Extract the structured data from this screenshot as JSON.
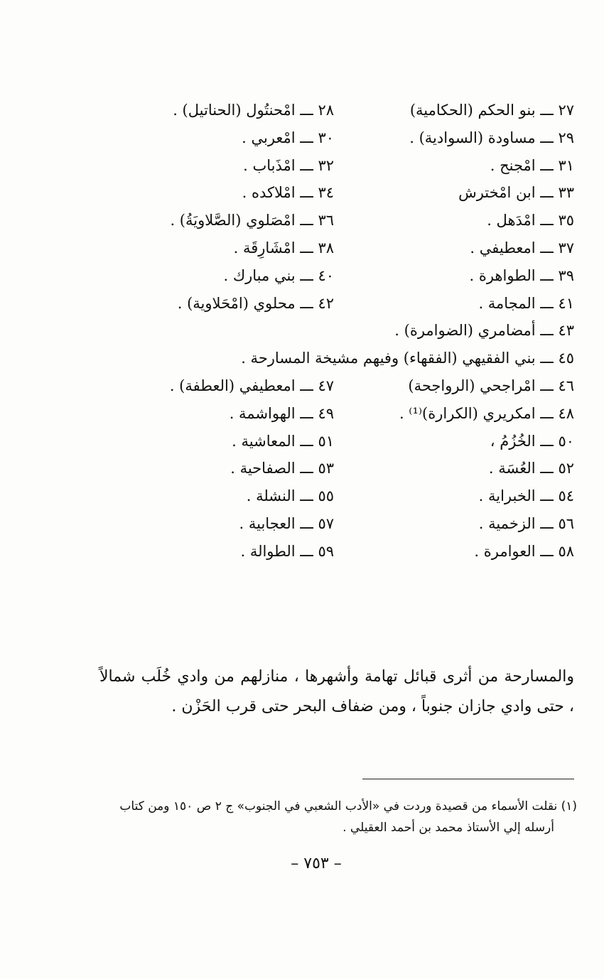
{
  "list_rows": [
    {
      "right": "٢٧ ـــ بنو الحكم (الحكامية)",
      "left": "٢٨ ـــ امْحنتُول (الحناتيل) ."
    },
    {
      "right": "٢٩ ـــ مساودة (السوادية) .",
      "left": "٣٠ ـــ امْعربي ."
    },
    {
      "right": "٣١ ـــ امْجنح .",
      "left": "٣٢ ـــ امْذَباب ."
    },
    {
      "right": "٣٣ ـــ ابن امْخترش",
      "left": "٣٤ ـــ امْلاكده ."
    },
    {
      "right": "٣٥ ـــ امْدَهل .",
      "left": "٣٦ ـــ امْصَلوي (الصَّلاويَةُ) ."
    },
    {
      "right": "٣٧ ـــ امعطيفي .",
      "left": "٣٨ ـــ امْشَارِقَة ."
    },
    {
      "right": "٣٩ ـــ الطواهرة .",
      "left": "٤٠ ـــ بني مبارك ."
    },
    {
      "right": "٤١ ـــ المجامة .",
      "left": "٤٢ ـــ محلوي (امْحَلاوية) ."
    },
    {
      "right": "٤٣ ـــ أمضامري (الضوامرة) .",
      "left": ""
    },
    {
      "right": "٤٥ ـــ بني الفقيهي (الفقهاء) وفيهم مشيخة المسارحة .",
      "left": ""
    },
    {
      "right": "٤٦ ـــ امْراجحي (الرواجحة)",
      "left": "٤٧ ـــ امعطيفي (العطفة) ."
    },
    {
      "right": "٤٨ ـــ امكريري (الكرارة)⁽¹⁾ .",
      "left": "٤٩ ـــ الهواشمة ."
    },
    {
      "right": "٥٠ ـــ الخُزُمُ ،",
      "left": "٥١ ـــ المعاشية ."
    },
    {
      "right": "٥٢ ـــ العُسَة .",
      "left": "٥٣ ـــ الصفاحية ."
    },
    {
      "right": "٥٤ ـــ الخبراية .",
      "left": "٥٥ ـــ النشلة ."
    },
    {
      "right": "٥٦ ـــ الزخمية .",
      "left": "٥٧ ـــ العجابية ."
    },
    {
      "right": "٥٨ ـــ العوامرة .",
      "left": "٥٩ ـــ الطوالة ."
    }
  ],
  "paragraph": "والمسارحة من أثرى قبائل تهامة وأشهرها ، منازلهم من وادي خُلَب شمالاً ، حتى وادي جازان جنوباً ، ومن ضفاف البحر حتى قرب الحَزْن .",
  "footnote": {
    "line1": "(١) نقلت الأسماء من قصيدة وردت في «الأدب الشعبي في الجنوب» ج ٢ ص ١٥٠ ومن كتاب",
    "line2": "أرسله إلي الأستاذ محمد بن أحمد العقيلي ."
  },
  "page_number": "– ٧٥٣ –"
}
